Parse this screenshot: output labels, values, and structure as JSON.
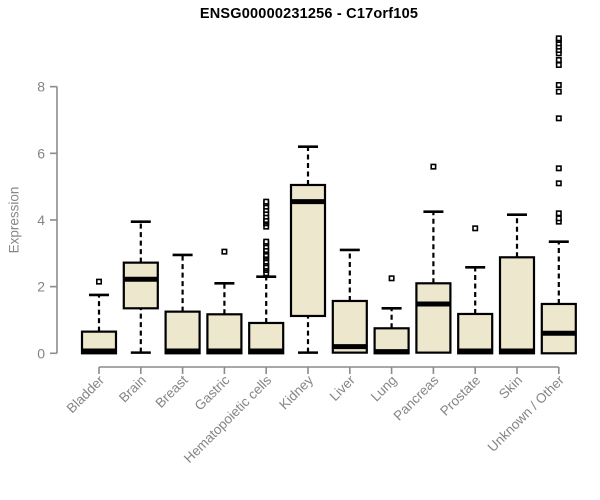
{
  "chart_data": {
    "type": "boxplot",
    "title": "ENSG00000231256 - C17orf105",
    "ylabel": "Expression",
    "xlabel": "",
    "ylim": [
      0,
      8
    ],
    "yticks": [
      0,
      2,
      4,
      6,
      8
    ],
    "grid": false,
    "legend": null,
    "categories": [
      "Bladder",
      "Brain",
      "Breast",
      "Gastric",
      "Hematopoietic cells",
      "Kidney",
      "Liver",
      "Lung",
      "Pancreas",
      "Prostate",
      "Skin",
      "Unknown / Other"
    ],
    "series": [
      {
        "name": "Bladder",
        "low": 0,
        "q1": 0,
        "median": 0.07,
        "q3": 0.65,
        "high": 1.75,
        "outliers": [
          2.15
        ]
      },
      {
        "name": "Brain",
        "low": 0.02,
        "q1": 1.35,
        "median": 2.22,
        "q3": 2.72,
        "high": 3.95,
        "outliers": []
      },
      {
        "name": "Breast",
        "low": 0,
        "q1": 0,
        "median": 0.07,
        "q3": 1.25,
        "high": 2.95,
        "outliers": []
      },
      {
        "name": "Gastric",
        "low": 0,
        "q1": 0,
        "median": 0.07,
        "q3": 1.17,
        "high": 2.1,
        "outliers": [
          3.05
        ]
      },
      {
        "name": "Hematopoietic cells",
        "low": 0,
        "q1": 0,
        "median": 0.07,
        "q3": 0.91,
        "high": 2.3,
        "outliers": [
          2.4,
          2.5,
          2.55,
          2.6,
          2.7,
          2.75,
          2.85,
          2.9,
          2.95,
          3.05,
          3.1,
          3.2,
          3.3,
          3.35,
          3.8,
          3.9,
          3.95,
          4.0,
          4.1,
          4.2,
          4.3,
          4.4,
          4.5,
          4.55
        ]
      },
      {
        "name": "Kidney",
        "low": 0.02,
        "q1": 1.12,
        "median": 4.55,
        "q3": 5.05,
        "high": 6.2,
        "outliers": []
      },
      {
        "name": "Liver",
        "low": 0,
        "q1": 0.02,
        "median": 0.2,
        "q3": 1.57,
        "high": 3.1,
        "outliers": []
      },
      {
        "name": "Lung",
        "low": 0,
        "q1": 0,
        "median": 0.05,
        "q3": 0.75,
        "high": 1.35,
        "outliers": [
          2.25
        ]
      },
      {
        "name": "Pancreas",
        "low": 0,
        "q1": 0.02,
        "median": 1.48,
        "q3": 2.1,
        "high": 4.25,
        "outliers": [
          5.6
        ]
      },
      {
        "name": "Prostate",
        "low": 0,
        "q1": 0,
        "median": 0.07,
        "q3": 1.18,
        "high": 2.58,
        "outliers": [
          3.75
        ]
      },
      {
        "name": "Skin",
        "low": 0,
        "q1": 0,
        "median": 0.07,
        "q3": 2.88,
        "high": 4.16,
        "outliers": []
      },
      {
        "name": "Unknown / Other",
        "low": 0,
        "q1": 0,
        "median": 0.6,
        "q3": 1.48,
        "high": 3.35,
        "outliers": [
          3.95,
          4.05,
          4.2,
          5.1,
          5.55,
          7.05,
          7.85,
          8.05,
          8.65,
          8.8,
          9.0,
          9.1,
          9.2,
          9.3,
          9.4,
          9.45
        ]
      }
    ]
  },
  "colors": {
    "background": "#FFFFFF",
    "box_fill": "#EDE8CD",
    "box_stroke": "#000000",
    "median": "#000000",
    "whisker": "#000000",
    "outlier_stroke": "#000000",
    "outlier_fill": "#FFFFFF",
    "axis": "#8C8C8C",
    "tick_label": "#858585",
    "title": "#000000"
  }
}
